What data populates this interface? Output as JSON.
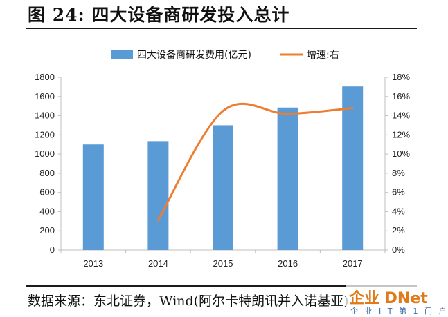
{
  "figure": {
    "title": "图 24:  四大设备商研发投入总计",
    "source": "数据来源：东北证券，Wind(阿尔卡特朗讯并入诺基亚)"
  },
  "watermark": {
    "main": "企业 DNet",
    "sub": "企 业 I T 第 1 门 户"
  },
  "colors": {
    "bar": "#5b9bd5",
    "line": "#ed7d31",
    "axis": "#bfbfbf"
  },
  "chart_data": {
    "type": "bar",
    "categories": [
      "2013",
      "2014",
      "2015",
      "2016",
      "2017"
    ],
    "series": [
      {
        "name": "四大设备商研发费用(亿元)",
        "type": "bar",
        "axis": "left",
        "values": [
          1100,
          1135,
          1300,
          1485,
          1705
        ]
      },
      {
        "name": "增速:右",
        "type": "line",
        "axis": "right",
        "values": [
          null,
          3.1,
          14.5,
          14.2,
          14.8
        ]
      }
    ],
    "y_left": {
      "range": [
        0,
        1800
      ],
      "ticks": [
        "0",
        "200",
        "400",
        "600",
        "800",
        "1000",
        "1200",
        "1400",
        "1600",
        "1800"
      ]
    },
    "y_right": {
      "range": [
        0,
        18
      ],
      "ticks": [
        "0%",
        "2%",
        "4%",
        "6%",
        "8%",
        "10%",
        "12%",
        "14%",
        "16%",
        "18%"
      ]
    },
    "grid": false,
    "legend_position": "top"
  }
}
